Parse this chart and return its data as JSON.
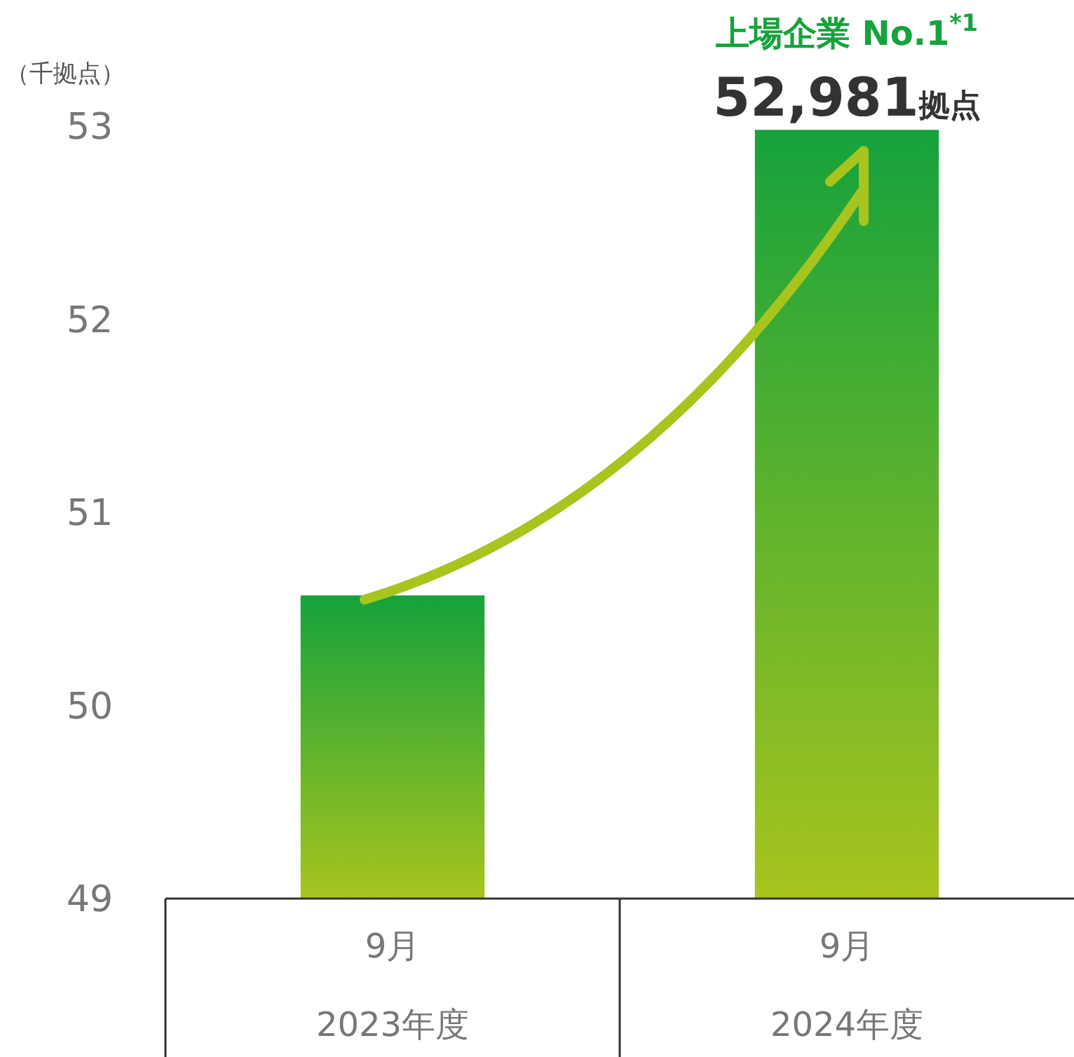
{
  "chart_data": {
    "type": "bar",
    "ylabel": "（千拠点）",
    "categories": [
      "9月\n2023年度",
      "9月\n2024年度"
    ],
    "values": [
      50.57,
      52.981
    ],
    "color": "#16a23c",
    "annotations": [
      "上場企業 No.1$^{*1}$",
      {
        "text": "52,981拠点",
        "x": "9月\n2024年度",
        "y": 52.981
      }
    ],
    "ylim": [
      49,
      53
    ],
    "yticks": [
      49,
      50,
      51,
      52,
      53
    ],
    "grid": false
  }
}
